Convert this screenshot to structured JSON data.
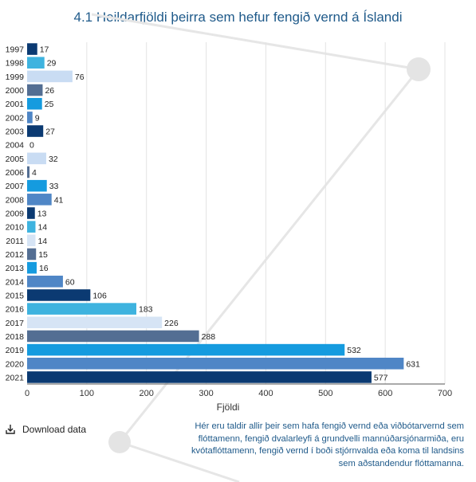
{
  "title": "4.1 Heildarfjöldi þeirra sem hefur fengið vernd á Íslandi",
  "download_label": "Download data",
  "note": "Hér eru taldir allir þeir sem hafa fengið vernd eða viðbótarvernd sem flóttamenn, fengið dvalarleyfi á grundvelli mannúðarsjónarmiða, eru kvótaflóttamenn, fengið vernd í boði stjórnvalda eða koma til landsins sem aðstandendur flóttamanna.",
  "colors": [
    "#0b3a72",
    "#3eb3df",
    "#c9dcf3",
    "#536e93",
    "#159bdf",
    "#4f86c6",
    "#d6e4f5"
  ],
  "chart_data": {
    "type": "bar",
    "orientation": "horizontal",
    "title": "4.1 Heildarfjöldi þeirra sem hefur fengið vernd á Íslandi",
    "xlabel": "Fjöldi",
    "ylabel": "",
    "xlim": [
      0,
      700
    ],
    "xticks": [
      "0",
      "100",
      "200",
      "300",
      "400",
      "500",
      "600",
      "700"
    ],
    "grid": true,
    "categories": [
      "1997",
      "1998",
      "1999",
      "2000",
      "2001",
      "2002",
      "2003",
      "2004",
      "2005",
      "2006",
      "2007",
      "2008",
      "2009",
      "2010",
      "2011",
      "2012",
      "2013",
      "2014",
      "2015",
      "2016",
      "2017",
      "2018",
      "2019",
      "2020",
      "2021"
    ],
    "values": [
      17,
      29,
      76,
      26,
      25,
      9,
      27,
      0,
      32,
      4,
      33,
      41,
      13,
      14,
      14,
      15,
      16,
      60,
      106,
      183,
      226,
      288,
      532,
      631,
      577
    ],
    "bar_colors": [
      "#0b3a72",
      "#3eb3df",
      "#c9dcf3",
      "#536e93",
      "#159bdf",
      "#4f86c6",
      "#0b3a72",
      "#3eb3df",
      "#c9dcf3",
      "#536e93",
      "#159bdf",
      "#4f86c6",
      "#0b3a72",
      "#3eb3df",
      "#d6e4f5",
      "#536e93",
      "#159bdf",
      "#4f86c6",
      "#0b3a72",
      "#3eb3df",
      "#d6e4f5",
      "#536e93",
      "#159bdf",
      "#4f86c6",
      "#0b3a72"
    ]
  }
}
